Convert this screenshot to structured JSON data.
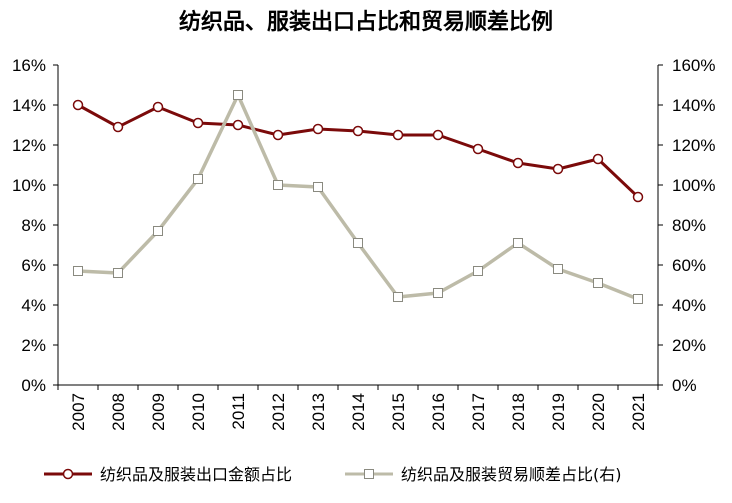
{
  "chart_data": {
    "type": "line",
    "title": "纺织品、服装出口占比和贸易顺差比例",
    "categories": [
      "2007",
      "2008",
      "2009",
      "2010",
      "2011",
      "2012",
      "2013",
      "2014",
      "2015",
      "2016",
      "2017",
      "2018",
      "2019",
      "2020",
      "2021"
    ],
    "series": [
      {
        "name": "纺织品及服装出口金额占比",
        "axis": "left",
        "color": "#7B0A0A",
        "marker": "circle",
        "values": [
          14.0,
          12.9,
          13.9,
          13.1,
          13.0,
          12.5,
          12.8,
          12.7,
          12.5,
          12.5,
          11.8,
          11.1,
          10.8,
          11.3,
          9.4
        ]
      },
      {
        "name": "纺织品及服装贸易顺差占比(右)",
        "axis": "right",
        "color": "#BDBBA8",
        "marker": "square",
        "values": [
          57,
          56,
          77,
          103,
          145,
          100,
          99,
          71,
          44,
          46,
          57,
          71,
          58,
          51,
          43
        ]
      }
    ],
    "y_left": {
      "ylim": [
        0,
        16
      ],
      "ticks": [
        "0%",
        "2%",
        "4%",
        "6%",
        "8%",
        "10%",
        "12%",
        "14%",
        "16%"
      ]
    },
    "y_right": {
      "ylim": [
        0,
        160
      ],
      "ticks": [
        "0%",
        "20%",
        "40%",
        "60%",
        "80%",
        "100%",
        "120%",
        "140%",
        "160%"
      ]
    },
    "grid": false,
    "legend_position": "bottom"
  }
}
